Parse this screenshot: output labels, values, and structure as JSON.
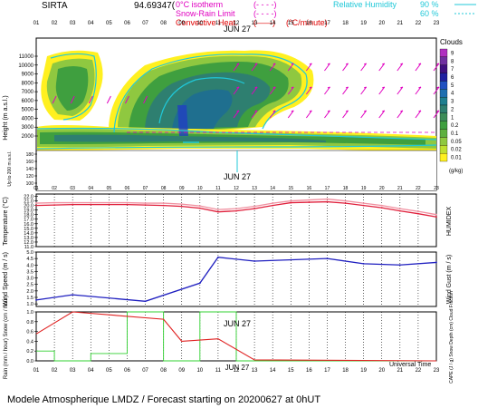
{
  "header": {
    "site": "SIRTA",
    "coords": "94.69347(",
    "legend_left": [
      {
        "label": "0°C isotherm",
        "style": "(- - - -)",
        "color": "#e000c0"
      },
      {
        "label": "Snow-Rain Limit",
        "style": "(- - - -)",
        "color": "#e000c0"
      },
      {
        "label": "Convective Heat.",
        "style": "(——)",
        "unit": "(°C/minute)",
        "color": "#e00000"
      }
    ],
    "legend_right": [
      {
        "label": "Relative Humidity",
        "value1": "90 %",
        "value2": "60 %",
        "color": "#20c8d8"
      }
    ]
  },
  "hours": [
    "01",
    "02",
    "03",
    "04",
    "05",
    "06",
    "07",
    "08",
    "09",
    "10",
    "11",
    "12",
    "13",
    "14",
    "15",
    "16",
    "17",
    "18",
    "19",
    "20",
    "21",
    "22",
    "23"
  ],
  "date_label": "JUN 27",
  "footer": {
    "universal_time": "Universal Time",
    "title": "Modele Atmospherique LMDZ / Forecast starting on 20200627 at 0hUT"
  },
  "panels": {
    "clouds": {
      "ylabel": "Height (m a.s.l.)",
      "ylabel2": "Up to 200 m a.s.l.",
      "yticks_upper": [
        "11000",
        "10000",
        "9000",
        "8000",
        "7000",
        "6000",
        "5000",
        "4000",
        "3000",
        "2000"
      ],
      "yticks_lower": [
        "180",
        "160",
        "140",
        "120",
        "100"
      ],
      "colorbar_title": "Clouds",
      "colorbar_ticks": [
        "9",
        "8",
        "7",
        "6",
        "5",
        "4",
        "3",
        "2",
        "1",
        "0.2",
        "0.1",
        "0.05",
        "0.02",
        "0.01"
      ],
      "colorbar_unit": "(g/kg)",
      "colorbar_colors": [
        "#b030c0",
        "#7030a0",
        "#401080",
        "#2020a0",
        "#2050c0",
        "#1f6fb0",
        "#1f7f8f",
        "#2e7f70",
        "#3c8c58",
        "#3f9f3f",
        "#5fb040",
        "#8fc840",
        "#c0e030",
        "#fff020"
      ]
    },
    "temperature": {
      "ylabel": "Temperature (°C)",
      "ylabel2": "HUMIDEX",
      "yticks": [
        "22.0",
        "21.0",
        "20.0",
        "19.0",
        "18.0",
        "17.0",
        "16.0",
        "15.0",
        "14.0",
        "13.0",
        "12.0",
        "11.0"
      ]
    },
    "wind": {
      "ylabel": "Wind Speed (m / s)",
      "ylabel2": "Wind Gust (m / s)",
      "yticks": [
        "5.0",
        "4.5",
        "4.0",
        "3.5",
        "3.0",
        "2.5",
        "2.0",
        "1.5",
        "1.0"
      ]
    },
    "rain": {
      "ylabel": "Rain (mm / hour) Snow (cm / hour)",
      "ylabel2": "CAPE (J / g) Snow Depth (cm) Cloud Fraction",
      "yticks": [
        "1.0",
        "0.8",
        "0.6",
        "0.4",
        "0.2",
        "0.0"
      ]
    }
  },
  "chart_data": [
    {
      "type": "heatmap",
      "title": "Clouds",
      "xlabel": "Universal Time",
      "ylabel": "Height (m a.s.l.)",
      "ylim": [
        2000,
        11500
      ],
      "x": [
        1,
        2,
        3,
        4,
        5,
        6,
        7,
        8,
        9,
        10,
        11,
        12,
        13,
        14,
        15,
        16,
        17,
        18,
        19,
        20,
        21,
        22,
        23
      ]
    },
    {
      "type": "line",
      "ylabel": "Temperature (°C)",
      "ylim": [
        11,
        22.5
      ],
      "x": [
        1,
        2,
        3,
        4,
        5,
        6,
        7,
        8,
        9,
        10,
        11,
        12,
        13,
        14,
        15,
        16,
        17,
        18,
        19,
        20,
        21,
        22,
        23
      ],
      "series": [
        {
          "name": "Temperature",
          "color": "#e0203c",
          "values": [
            20.0,
            20.1,
            20.2,
            20.2,
            20.2,
            20.2,
            20.1,
            20.0,
            19.8,
            19.4,
            18.6,
            18.8,
            19.3,
            20.0,
            20.6,
            20.7,
            20.8,
            20.5,
            20.0,
            19.5,
            18.8,
            18.2,
            17.5
          ]
        },
        {
          "name": "HUMIDEX",
          "color": "#f090a0",
          "values": [
            20.5,
            20.6,
            20.6,
            20.6,
            20.6,
            20.6,
            20.5,
            20.5,
            20.3,
            19.9,
            19.1,
            19.3,
            19.8,
            20.5,
            21.0,
            21.2,
            21.4,
            21.0,
            20.5,
            20.0,
            19.3,
            18.7,
            18.0
          ]
        }
      ]
    },
    {
      "type": "line",
      "ylabel": "Wind Speed (m / s)",
      "ylim": [
        0.8,
        5.0
      ],
      "x": [
        1,
        3,
        7,
        10,
        11,
        13,
        17,
        19,
        21,
        23
      ],
      "series": [
        {
          "name": "Wind Speed",
          "color": "#2020c0",
          "values": [
            1.3,
            1.7,
            1.2,
            2.6,
            4.6,
            4.3,
            4.5,
            4.1,
            4.0,
            4.2
          ]
        }
      ]
    },
    {
      "type": "line",
      "ylabel": "Rain (mm / hour)",
      "ylim": [
        0,
        1.0
      ],
      "x": [
        1,
        3,
        8,
        9,
        11,
        13,
        23
      ],
      "series": [
        {
          "name": "CAPE",
          "color": "#e02020",
          "values": [
            0.55,
            1.0,
            0.85,
            0.4,
            0.45,
            0.02,
            0.0
          ]
        }
      ]
    }
  ]
}
